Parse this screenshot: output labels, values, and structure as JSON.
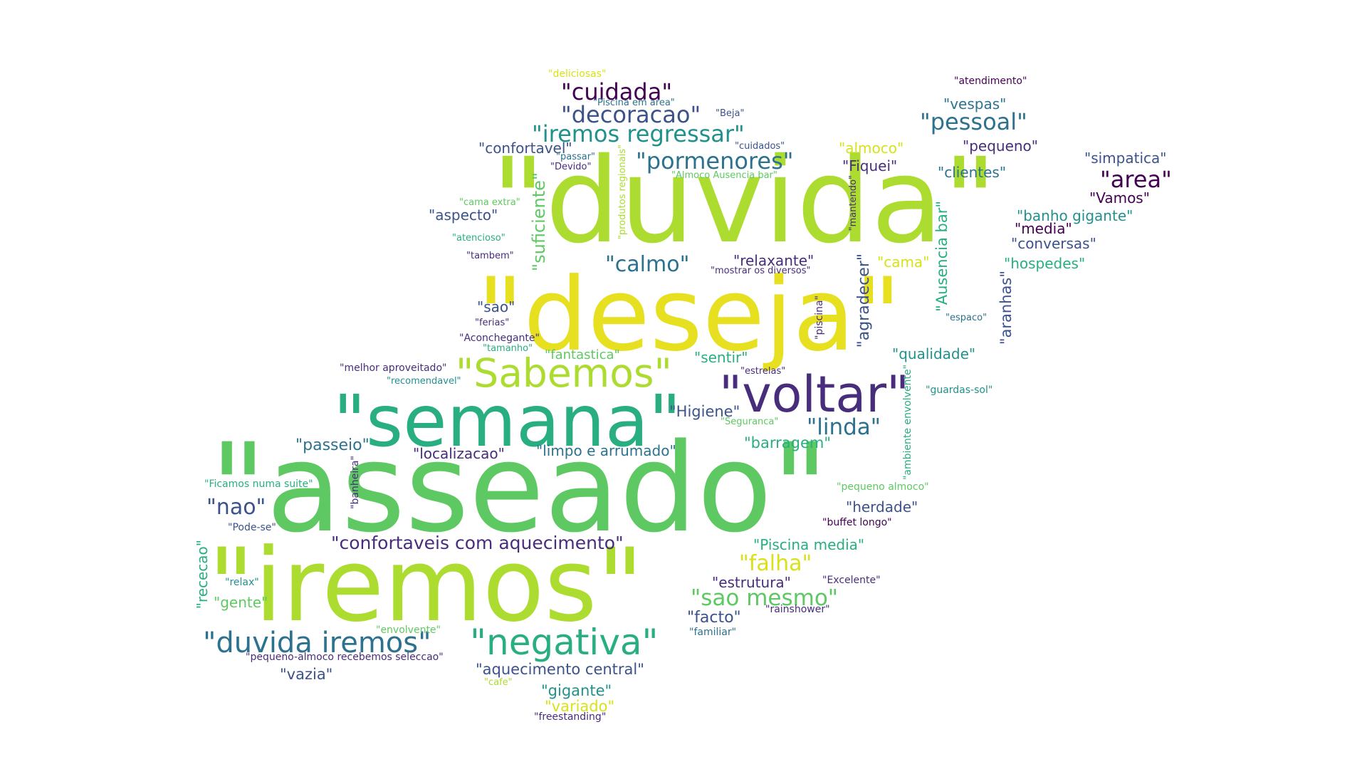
{
  "colors": {
    "c1": "#440154",
    "c2": "#472d7b",
    "c3": "#3b528b",
    "c4": "#2c728e",
    "c5": "#21918c",
    "c6": "#28ae80",
    "c7": "#5ec962",
    "c8": "#addc30",
    "c9": "#d8e219",
    "c10": "#e6e021"
  },
  "words": [
    {
      "t": "\"duvida\"",
      "c": "c8"
    },
    {
      "t": "\"deseja\"",
      "c": "c10"
    },
    {
      "t": "\"asseado\"",
      "c": "c7"
    },
    {
      "t": "\"iremos\"",
      "c": "c8"
    },
    {
      "t": "\"semana\"",
      "c": "c6"
    },
    {
      "t": "\"voltar\"",
      "c": "c2"
    },
    {
      "t": "\"Sabemos\"",
      "c": "c8"
    },
    {
      "t": "\"negativa\"",
      "c": "c6"
    },
    {
      "t": "\"duvida iremos\"",
      "c": "c4"
    },
    {
      "t": "\"cuidada\"",
      "c": "c1"
    },
    {
      "t": "\"decoracao\"",
      "c": "c3"
    },
    {
      "t": "\"iremos regressar\"",
      "c": "c5"
    },
    {
      "t": "\"pormenores\"",
      "c": "c4"
    },
    {
      "t": "\"pessoal\"",
      "c": "c4"
    },
    {
      "t": "\"area\"",
      "c": "c1"
    },
    {
      "t": "\"calmo\"",
      "c": "c4"
    },
    {
      "t": "\"linda\"",
      "c": "c4"
    },
    {
      "t": "\"nao\"",
      "c": "c3"
    },
    {
      "t": "\"confortaveis com aquecimento\"",
      "c": "c2"
    },
    {
      "t": "\"falha\"",
      "c": "c9"
    },
    {
      "t": "\"sao mesmo\"",
      "c": "c7"
    },
    {
      "t": "\"facto\"",
      "c": "c3"
    },
    {
      "t": "\"aquecimento central\"",
      "c": "c3"
    },
    {
      "t": "\"gigante\"",
      "c": "c5"
    },
    {
      "t": "\"variado\"",
      "c": "c9"
    },
    {
      "t": "\"vazia\"",
      "c": "c3"
    },
    {
      "t": "\"passeio\"",
      "c": "c4"
    },
    {
      "t": "\"localizacao\"",
      "c": "c2"
    },
    {
      "t": "\"limpo e arrumado\"",
      "c": "c4"
    },
    {
      "t": "\"Higiene\"",
      "c": "c3"
    },
    {
      "t": "\"barragem\"",
      "c": "c6"
    },
    {
      "t": "\"sentir\"",
      "c": "c6"
    },
    {
      "t": "\"fantastica\"",
      "c": "c7"
    },
    {
      "t": "\"relaxante\"",
      "c": "c2"
    },
    {
      "t": "\"cama\"",
      "c": "c9"
    },
    {
      "t": "\"hospedes\"",
      "c": "c6"
    },
    {
      "t": "\"qualidade\"",
      "c": "c5"
    },
    {
      "t": "\"herdade\"",
      "c": "c3"
    },
    {
      "t": "\"Piscina media\"",
      "c": "c6"
    },
    {
      "t": "\"estrutura\"",
      "c": "c2"
    },
    {
      "t": "\"banho gigante\"",
      "c": "c5"
    },
    {
      "t": "\"media\"",
      "c": "c1"
    },
    {
      "t": "\"conversas\"",
      "c": "c3"
    },
    {
      "t": "\"Vamos\"",
      "c": "c1"
    },
    {
      "t": "\"simpatica\"",
      "c": "c3"
    },
    {
      "t": "\"clientes\"",
      "c": "c4"
    },
    {
      "t": "\"Fiquei\"",
      "c": "c2"
    },
    {
      "t": "\"almoco\"",
      "c": "c9"
    },
    {
      "t": "\"pequeno\"",
      "c": "c2"
    },
    {
      "t": "\"vespas\"",
      "c": "c4"
    },
    {
      "t": "\"confortavel\"",
      "c": "c3"
    },
    {
      "t": "\"aspecto\"",
      "c": "c3"
    },
    {
      "t": "\"sao\"",
      "c": "c3"
    },
    {
      "t": "\"gente\"",
      "c": "c7"
    },
    {
      "t": "\"atendimento\"",
      "c": "c1"
    },
    {
      "t": "\"deliciosas\"",
      "c": "c9"
    },
    {
      "t": "\"Piscina em area\"",
      "c": "c4"
    },
    {
      "t": "\"Beja\"",
      "c": "c3"
    },
    {
      "t": "\"cuidados\"",
      "c": "c3"
    },
    {
      "t": "\"passar\"",
      "c": "c4"
    },
    {
      "t": "\"Devido\"",
      "c": "c2"
    },
    {
      "t": "\"Almoco Ausencia bar\"",
      "c": "c7"
    },
    {
      "t": "\"cama extra\"",
      "c": "c7"
    },
    {
      "t": "\"atencioso\"",
      "c": "c6"
    },
    {
      "t": "\"tambem\"",
      "c": "c2"
    },
    {
      "t": "\"mostrar os diversos\"",
      "c": "c2"
    },
    {
      "t": "\"ferias\"",
      "c": "c2"
    },
    {
      "t": "\"Aconchegante\"",
      "c": "c2"
    },
    {
      "t": "\"tamanho\"",
      "c": "c6"
    },
    {
      "t": "\"melhor aproveitado\"",
      "c": "c2"
    },
    {
      "t": "\"recomendavel\"",
      "c": "c5"
    },
    {
      "t": "\"estrelas\"",
      "c": "c2"
    },
    {
      "t": "\"guardas-sol\"",
      "c": "c5"
    },
    {
      "t": "\"espaco\"",
      "c": "c4"
    },
    {
      "t": "\"Seguranca\"",
      "c": "c7"
    },
    {
      "t": "\"Ficamos numa suite\"",
      "c": "c6"
    },
    {
      "t": "\"Pode-se\"",
      "c": "c3"
    },
    {
      "t": "\"relax\"",
      "c": "c5"
    },
    {
      "t": "\"envolvente\"",
      "c": "c7"
    },
    {
      "t": "\"pequeno-almoco recebemos seleccao\"",
      "c": "c2"
    },
    {
      "t": "\"familiar\"",
      "c": "c4"
    },
    {
      "t": "\"rainshower\"",
      "c": "c2"
    },
    {
      "t": "\"Excelente\"",
      "c": "c2"
    },
    {
      "t": "\"buffet longo\"",
      "c": "c1"
    },
    {
      "t": "\"pequeno almoco\"",
      "c": "c7"
    },
    {
      "t": "\"cafe\"",
      "c": "c8"
    },
    {
      "t": "\"freestanding\"",
      "c": "c2"
    },
    {
      "t": "\"suficiente\"",
      "c": "c7"
    },
    {
      "t": "\"produtos regionais\"",
      "c": "c8"
    },
    {
      "t": "\"mantendo\"",
      "c": "c2"
    },
    {
      "t": "\"Ausencia bar\"",
      "c": "c6"
    },
    {
      "t": "\"agradecer\"",
      "c": "c3"
    },
    {
      "t": "\"aranhas\"",
      "c": "c3"
    },
    {
      "t": "\"piscina\"",
      "c": "c2"
    },
    {
      "t": "\"ambiente envolvente\"",
      "c": "c6"
    },
    {
      "t": "\"banheira\"",
      "c": "c2"
    },
    {
      "t": "\"rececao\"",
      "c": "c6"
    }
  ]
}
